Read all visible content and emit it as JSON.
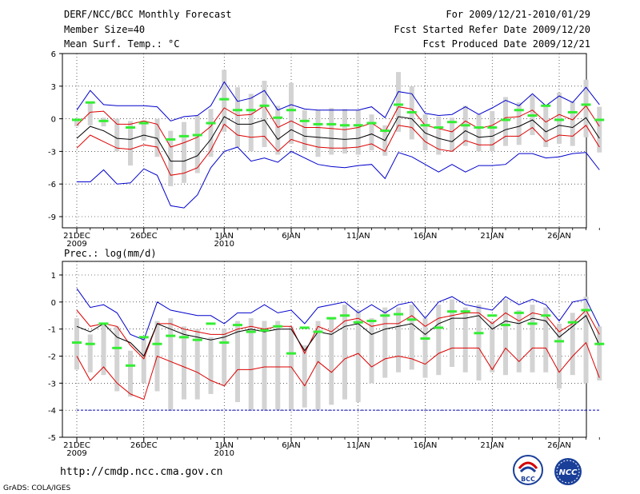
{
  "header": {
    "title": "DERF/NCC/BCC Monthly Forecast",
    "member_size": "Member Size=40",
    "variable": "Mean Surf. Temp.: °C",
    "forecast_period": "For 2009/12/21-2010/01/29",
    "start_date": "Fcst Started Refer Date 2009/12/20",
    "produced_date": "Fcst Produced Date 2009/12/21"
  },
  "footer": {
    "url": "http://cmdp.ncc.cma.gov.cn",
    "credit": "GrADS: COLA/IGES",
    "logo_left_text": "BCC",
    "logo_right_text": "NCC"
  },
  "colors": {
    "envelope": "#0000cc",
    "spread": "#dd0000",
    "ensemble_mean": "#000000",
    "observation": "#33ee33",
    "boxes": "#d3d3d3",
    "reference_line": "#0000cc"
  },
  "chart_data": [
    {
      "type": "line",
      "title": "Mean Surf. Temp.: °C",
      "ylabel": "°C",
      "ylim": [
        -10,
        6
      ],
      "yticks": [
        6,
        3,
        0,
        -3,
        -6,
        -9
      ],
      "x_start": 1,
      "x_end": 40,
      "xticks": [
        {
          "x": 1,
          "label": "21DEC",
          "sub": "2009"
        },
        {
          "x": 6,
          "label": "26DEC",
          "sub": ""
        },
        {
          "x": 12,
          "label": "1JAN",
          "sub": "2010"
        },
        {
          "x": 17,
          "label": "6JAN",
          "sub": ""
        },
        {
          "x": 22,
          "label": "11JAN",
          "sub": ""
        },
        {
          "x": 27,
          "label": "16JAN",
          "sub": ""
        },
        {
          "x": 32,
          "label": "21JAN",
          "sub": ""
        },
        {
          "x": 37,
          "label": "26JAN",
          "sub": ""
        }
      ],
      "series": [
        {
          "name": "max",
          "color": "#0000cc",
          "values": [
            0.8,
            2.6,
            1.3,
            1.2,
            1.2,
            1.2,
            1.1,
            -0.2,
            0.2,
            0.3,
            1.2,
            3.4,
            1.6,
            1.9,
            2.6,
            0.8,
            1.3,
            0.9,
            0.8,
            0.8,
            0.8,
            0.8,
            1.1,
            0.1,
            2.5,
            2.3,
            0.5,
            0.3,
            0.4,
            1.1,
            0.4,
            1.0,
            1.7,
            1.2,
            2.3,
            1.2,
            2.1,
            1.5,
            2.9,
            1.3
          ]
        },
        {
          "name": "upper",
          "color": "#dd0000",
          "values": [
            -0.6,
            0.6,
            0.7,
            -0.5,
            -0.5,
            -0.2,
            -0.5,
            -2.6,
            -2.2,
            -1.7,
            -0.7,
            1.0,
            0.3,
            0.4,
            1.2,
            -0.8,
            -0.2,
            -0.8,
            -0.8,
            -0.9,
            -1.0,
            -0.8,
            -0.4,
            -1.2,
            1.1,
            0.9,
            -0.6,
            -0.9,
            -1.2,
            -0.2,
            -0.9,
            -0.6,
            0.1,
            0.2,
            0.8,
            -0.3,
            0.4,
            -0.1,
            1.2,
            -0.7
          ]
        },
        {
          "name": "mean",
          "color": "#000000",
          "values": [
            -1.8,
            -0.7,
            -1.1,
            -1.8,
            -1.9,
            -1.5,
            -1.8,
            -3.9,
            -3.9,
            -3.4,
            -1.9,
            0.2,
            -0.5,
            -0.5,
            -0.1,
            -1.9,
            -1.0,
            -1.6,
            -1.7,
            -1.8,
            -1.9,
            -1.8,
            -1.4,
            -2.0,
            0.2,
            0.0,
            -1.3,
            -1.8,
            -2.1,
            -1.1,
            -1.7,
            -1.6,
            -1.0,
            -0.7,
            -0.1,
            -1.2,
            -0.6,
            -0.8,
            0.1,
            -1.8
          ]
        },
        {
          "name": "lower",
          "color": "#dd0000",
          "values": [
            -2.7,
            -1.5,
            -2.1,
            -2.7,
            -2.8,
            -2.4,
            -2.6,
            -5.2,
            -5.0,
            -4.5,
            -2.9,
            -0.5,
            -1.5,
            -1.7,
            -1.6,
            -3.0,
            -1.9,
            -2.3,
            -2.6,
            -2.7,
            -2.7,
            -2.6,
            -2.3,
            -3.0,
            -0.6,
            -0.8,
            -2.1,
            -2.8,
            -3.0,
            -2.0,
            -2.4,
            -2.4,
            -1.6,
            -1.6,
            -0.8,
            -2.1,
            -1.5,
            -1.6,
            -0.6,
            -2.6
          ]
        },
        {
          "name": "min",
          "color": "#0000cc",
          "values": [
            -5.8,
            -5.8,
            -4.7,
            -6.0,
            -5.9,
            -4.6,
            -5.2,
            -8.0,
            -8.2,
            -7.0,
            -4.5,
            -3.0,
            -2.6,
            -3.9,
            -3.6,
            -4.0,
            -3.0,
            -3.6,
            -4.2,
            -4.4,
            -4.5,
            -4.3,
            -4.2,
            -5.5,
            -3.1,
            -3.5,
            -4.2,
            -4.9,
            -4.2,
            -4.9,
            -4.3,
            -4.3,
            -4.2,
            -3.2,
            -3.2,
            -3.6,
            -3.5,
            -3.2,
            -3.1,
            -4.7
          ]
        }
      ],
      "boxes_low": [
        -0.7,
        -0.6,
        -0.7,
        -3.0,
        -4.3,
        -2.0,
        -3.5,
        -6.2,
        -5.9,
        -5.0,
        -3.5,
        -1.2,
        -2.6,
        -3.0,
        -2.6,
        -3.3,
        -2.3,
        -2.9,
        -3.5,
        -3.3,
        -3.2,
        -3.3,
        -2.9,
        -3.4,
        -1.2,
        -1.9,
        -2.9,
        -3.3,
        -3.0,
        -2.5,
        -3.0,
        -3.0,
        -2.5,
        -2.4,
        -1.5,
        -2.6,
        -2.3,
        -2.5,
        -1.7,
        -3.1
      ],
      "boxes_high": [
        -0.1,
        1.5,
        0.1,
        0.0,
        -0.2,
        -0.2,
        0.0,
        -1.1,
        -0.3,
        0.3,
        0.9,
        4.5,
        2.9,
        2.3,
        3.5,
        1.2,
        3.3,
        0.8,
        0.8,
        1.0,
        0.9,
        0.8,
        0.4,
        -0.6,
        4.3,
        3.0,
        0.4,
        0.2,
        0.1,
        1.2,
        0.4,
        0.7,
        2.0,
        1.5,
        2.2,
        1.1,
        2.4,
        1.6,
        3.6,
        1.1
      ],
      "observed": [
        -0.1,
        1.5,
        -0.2,
        null,
        -0.8,
        -0.4,
        null,
        -1.9,
        -1.6,
        -1.5,
        -0.4,
        1.8,
        0.8,
        0.8,
        1.2,
        0.1,
        0.8,
        -0.2,
        -0.5,
        -0.5,
        -0.6,
        -0.6,
        -0.4,
        -1.1,
        1.3,
        0.6,
        -0.6,
        -0.8,
        -0.3,
        -0.6,
        -0.8,
        -0.8,
        -0.1,
        0.8,
        0.3,
        1.2,
        -0.1,
        0.6,
        1.3,
        -0.1
      ]
    },
    {
      "type": "line",
      "title": "Prec.: log(mm/d)",
      "ylabel": "log(mm/d)",
      "ylim": [
        -5,
        1.2
      ],
      "yticks": [
        1,
        0,
        -1,
        -2,
        -3,
        -4,
        -5
      ],
      "reference_line": -4,
      "x_start": 1,
      "x_end": 40,
      "xticks": [
        {
          "x": 1,
          "label": "21DEC",
          "sub": "2009"
        },
        {
          "x": 6,
          "label": "26DEC",
          "sub": ""
        },
        {
          "x": 12,
          "label": "1JAN",
          "sub": "2010"
        },
        {
          "x": 17,
          "label": "6JAN",
          "sub": ""
        },
        {
          "x": 22,
          "label": "11JAN",
          "sub": ""
        },
        {
          "x": 27,
          "label": "16JAN",
          "sub": ""
        },
        {
          "x": 32,
          "label": "21JAN",
          "sub": ""
        },
        {
          "x": 37,
          "label": "26JAN",
          "sub": ""
        }
      ],
      "series": [
        {
          "name": "max",
          "color": "#0000cc",
          "values": [
            0.5,
            -0.2,
            -0.1,
            -0.4,
            -1.2,
            -1.4,
            0.0,
            -0.3,
            -0.4,
            -0.5,
            -0.5,
            -0.8,
            -0.4,
            -0.4,
            -0.1,
            -0.4,
            -0.3,
            -0.8,
            -0.2,
            -0.1,
            0.0,
            -0.4,
            -0.1,
            -0.4,
            -0.1,
            0.0,
            -0.6,
            0.0,
            0.2,
            -0.1,
            -0.2,
            -0.3,
            0.2,
            -0.1,
            0.1,
            -0.1,
            -0.7,
            0.0,
            0.1,
            -0.9
          ]
        },
        {
          "name": "upper",
          "color": "#dd0000",
          "values": [
            -0.3,
            -0.9,
            -0.8,
            -0.9,
            -1.6,
            -2.1,
            -0.8,
            -0.8,
            -1.0,
            -1.1,
            -1.2,
            -1.2,
            -1.0,
            -0.9,
            -1.0,
            -0.9,
            -0.9,
            -1.9,
            -0.9,
            -1.1,
            -0.7,
            -0.6,
            -0.9,
            -0.8,
            -0.8,
            -0.5,
            -0.9,
            -0.6,
            -0.5,
            -0.4,
            -0.4,
            -0.8,
            -0.4,
            -0.7,
            -0.4,
            -0.5,
            -1.1,
            -0.8,
            -0.3,
            -1.2
          ]
        },
        {
          "name": "mean",
          "color": "#000000",
          "values": [
            -0.9,
            -1.1,
            -0.8,
            -1.3,
            -1.5,
            -2.0,
            -0.8,
            -1.0,
            -1.2,
            -1.3,
            -1.4,
            -1.3,
            -1.1,
            -1.0,
            -1.1,
            -1.0,
            -1.0,
            -1.8,
            -1.1,
            -1.2,
            -0.9,
            -0.8,
            -1.2,
            -1.0,
            -0.9,
            -0.8,
            -1.2,
            -0.8,
            -0.6,
            -0.6,
            -0.5,
            -1.0,
            -0.7,
            -0.8,
            -0.6,
            -0.7,
            -1.3,
            -0.9,
            -0.5,
            -1.6
          ]
        },
        {
          "name": "lower",
          "color": "#dd0000",
          "values": [
            -2.0,
            -2.9,
            -2.4,
            -3.0,
            -3.4,
            -3.6,
            -2.0,
            -2.2,
            -2.4,
            -2.6,
            -2.9,
            -3.1,
            -2.5,
            -2.5,
            -2.4,
            -2.4,
            -2.4,
            -3.1,
            -2.2,
            -2.6,
            -2.1,
            -1.9,
            -2.4,
            -2.1,
            -2.0,
            -2.1,
            -2.3,
            -1.9,
            -1.7,
            -1.7,
            -1.7,
            -2.5,
            -1.7,
            -2.2,
            -1.7,
            -1.7,
            -2.6,
            -2.0,
            -1.5,
            -2.8
          ]
        },
        {
          "name": "min",
          "color": "#0000cc",
          "values": [
            -4.0,
            -4.0,
            -4.0,
            -4.0,
            -4.0,
            -4.0,
            -4.0,
            -4.0,
            -4.0,
            -4.0,
            -4.0,
            -4.0,
            -4.0,
            -4.0,
            -4.0,
            -4.0,
            -4.0,
            -4.0,
            -4.0,
            -4.0,
            -4.0,
            -4.0,
            -4.0,
            -4.0,
            -4.0,
            -4.0,
            -4.0,
            -4.0,
            -4.0,
            -4.0,
            -4.0,
            -4.0,
            -4.0,
            -4.0,
            -4.0,
            -4.0,
            -4.0,
            -4.0,
            -4.0,
            -4.0
          ]
        }
      ],
      "boxes_low": [
        -2.5,
        -2.6,
        -2.7,
        -3.3,
        -3.5,
        -3.0,
        -3.3,
        -4.0,
        -3.6,
        -3.6,
        -3.4,
        -3.1,
        -3.7,
        -4.0,
        -4.0,
        -4.0,
        -4.0,
        -3.9,
        -4.0,
        -3.8,
        -3.6,
        -3.7,
        -3.0,
        -2.8,
        -2.6,
        -2.5,
        -2.8,
        -2.7,
        -2.4,
        -2.6,
        -2.9,
        -2.6,
        -2.7,
        -2.6,
        -2.6,
        -2.6,
        -3.2,
        -2.7,
        -3.0,
        -2.9
      ],
      "boxes_high": [
        -0.6,
        -1.2,
        -0.8,
        -0.9,
        -1.8,
        -1.3,
        -0.7,
        -0.6,
        -0.9,
        -1.0,
        -1.3,
        -1.0,
        -0.7,
        -0.6,
        -0.7,
        -0.7,
        -0.9,
        -1.6,
        -0.7,
        -0.6,
        -0.1,
        -0.3,
        -0.6,
        -0.2,
        -0.2,
        -0.1,
        -0.6,
        -0.1,
        0.1,
        -0.2,
        -0.1,
        -0.7,
        0.1,
        -0.3,
        -0.1,
        -0.2,
        -0.8,
        -0.4,
        0.2,
        -0.9
      ],
      "observed": [
        -1.5,
        -1.55,
        -0.8,
        -1.7,
        -2.35,
        -1.3,
        -1.55,
        -1.25,
        -1.3,
        -1.4,
        -0.8,
        -1.5,
        -0.85,
        -1.1,
        -1.05,
        -0.9,
        -1.9,
        -0.95,
        -1.1,
        -0.6,
        -0.5,
        -0.75,
        -0.7,
        -0.5,
        -0.45,
        -0.65,
        -1.35,
        -0.95,
        -0.35,
        -0.35,
        -1.15,
        -0.5,
        -0.85,
        -0.4,
        -0.8,
        -0.5,
        -1.45,
        -0.75,
        -0.3,
        -1.55
      ]
    }
  ]
}
